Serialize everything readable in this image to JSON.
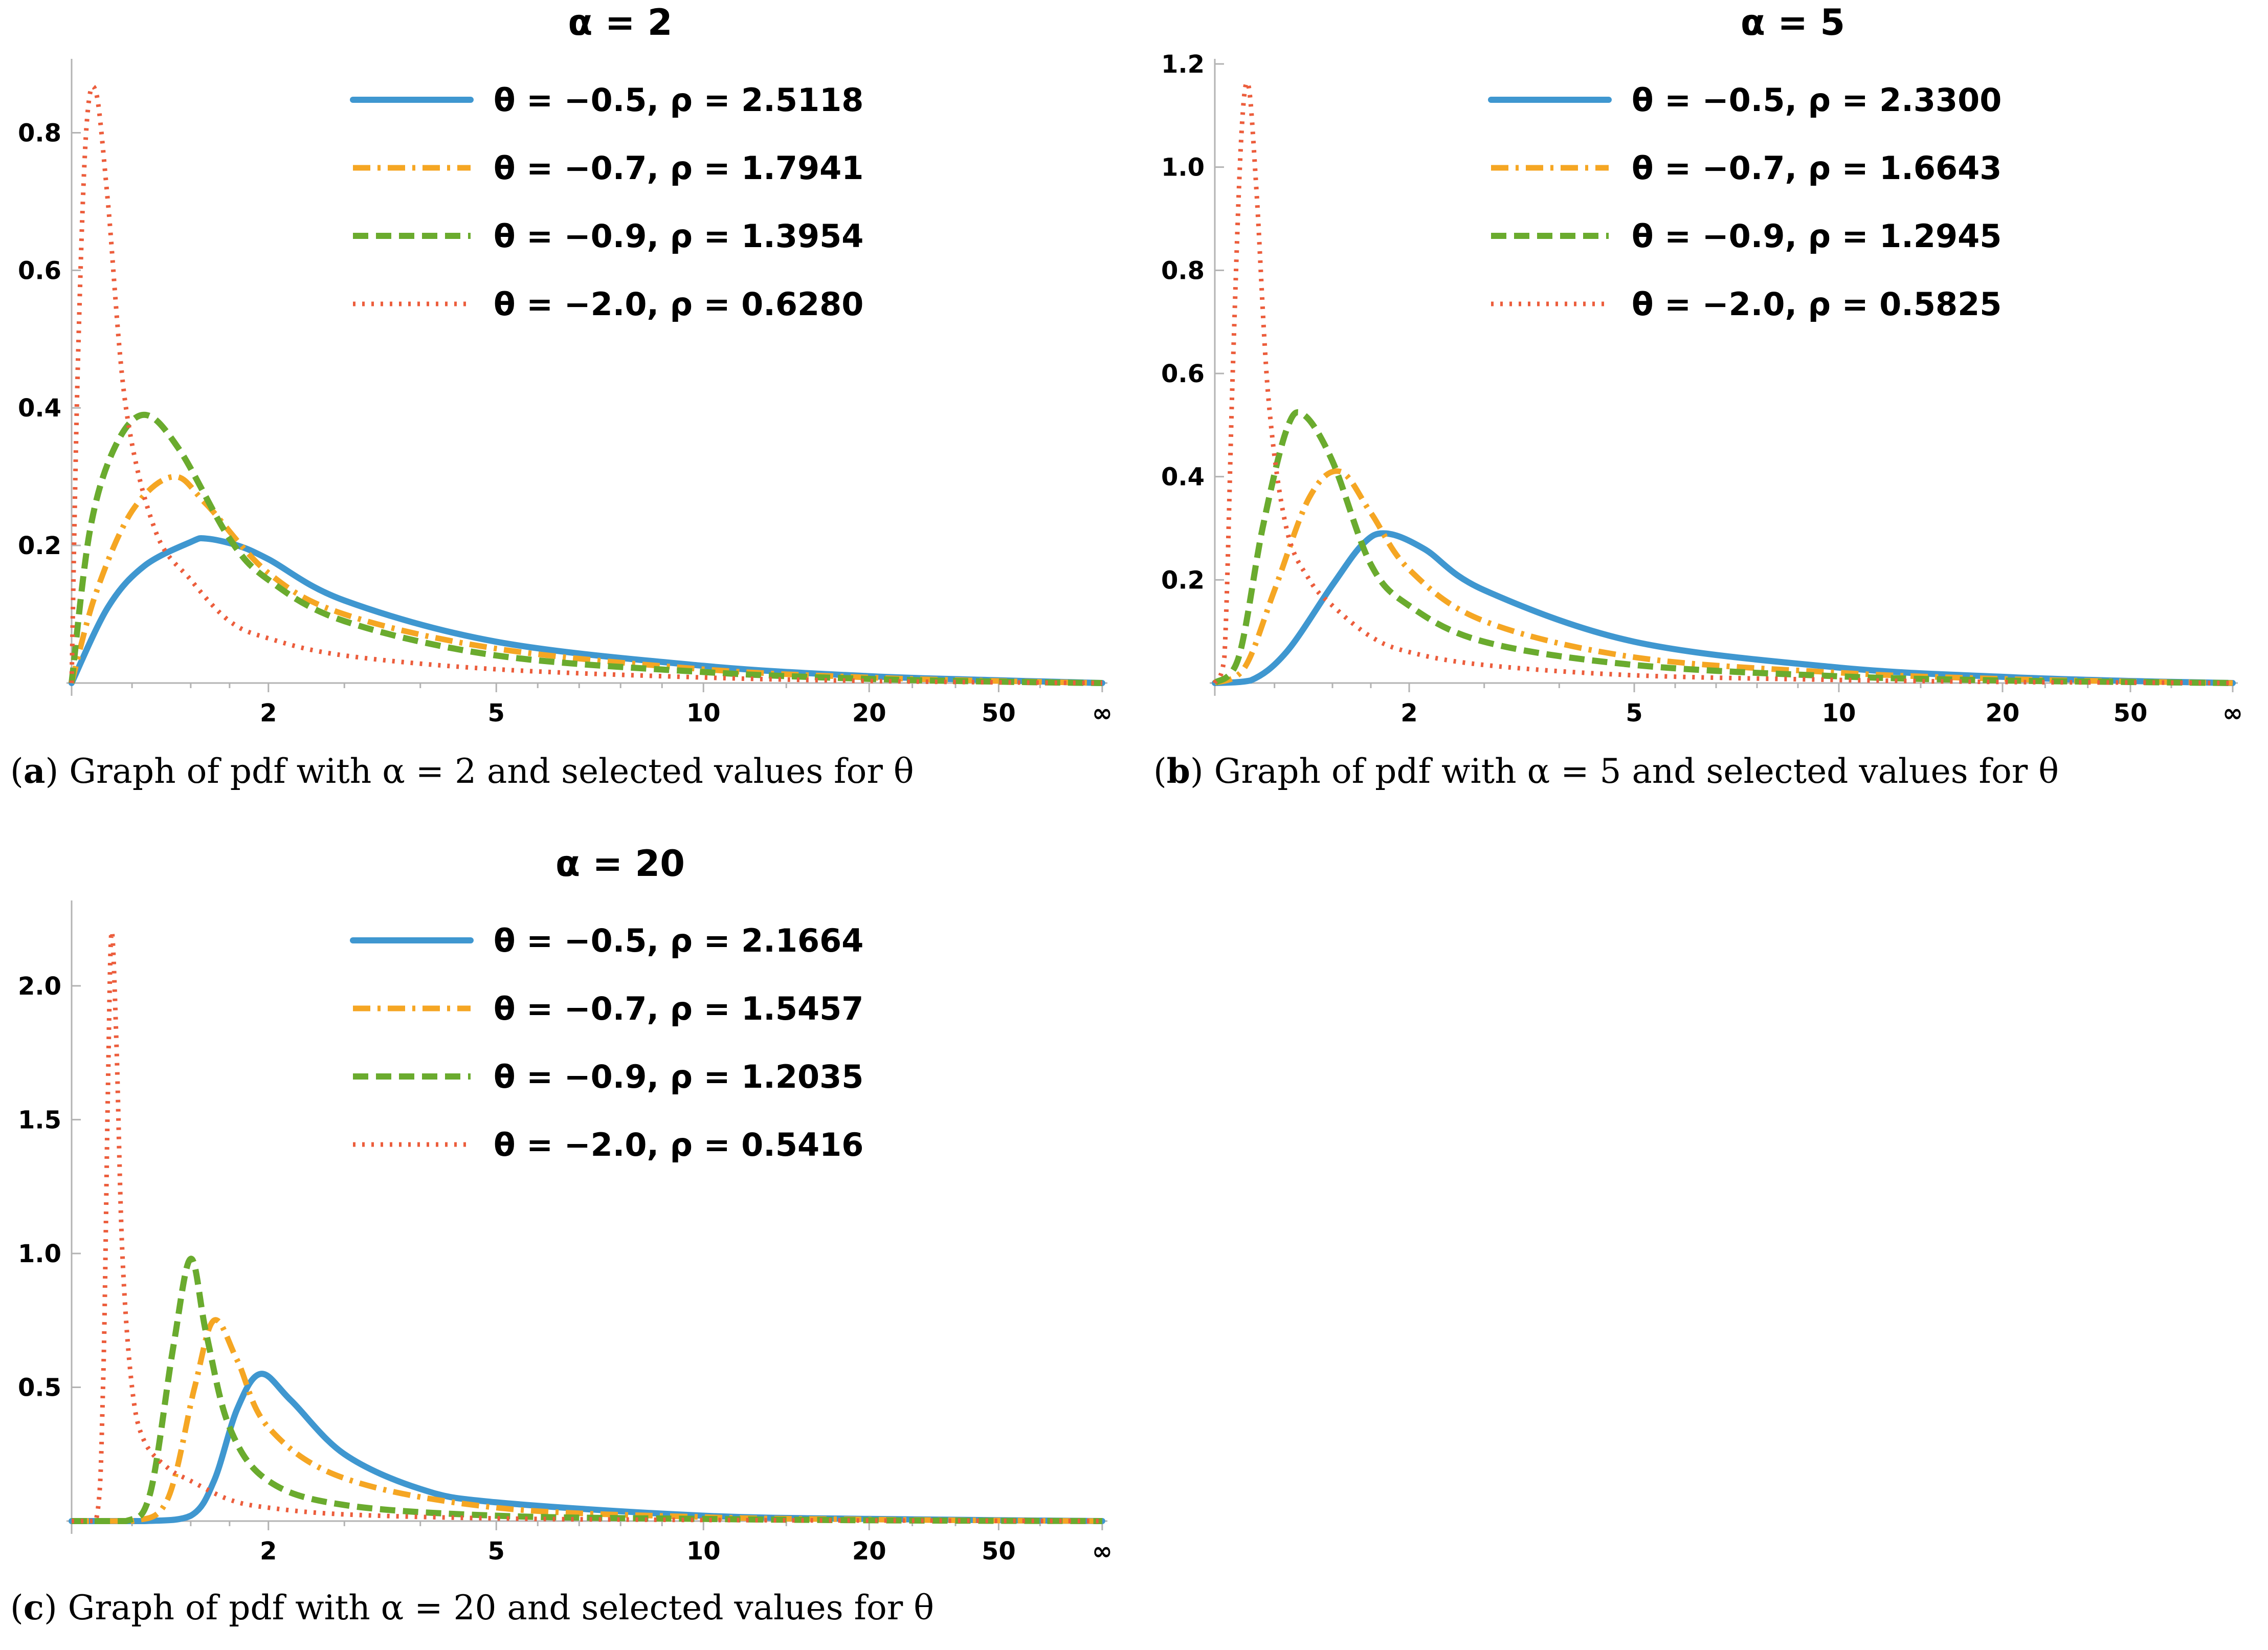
{
  "colors": {
    "blue": "#3f97d0",
    "orange": "#f5a623",
    "green": "#6aab2e",
    "red": "#ec5d3c"
  },
  "chart_data": [
    {
      "id": "a",
      "type": "line",
      "title": "α = 2",
      "caption_letter": "a",
      "caption_text": "Graph of pdf with α = 2 and selected values for θ",
      "xlabel": "",
      "ylabel": "",
      "x_scale": "compactified (0 to ∞)",
      "x_ticks": [
        "2",
        "5",
        "10",
        "20",
        "50",
        "∞"
      ],
      "x_tick_values": [
        2,
        5,
        10,
        20,
        50,
        "inf"
      ],
      "y_ticks": [
        "0.2",
        "0.4",
        "0.6",
        "0.8"
      ],
      "ylim": [
        0,
        0.9
      ],
      "legend_position": "top-center",
      "series": [
        {
          "name": "θ = −0.5, ρ = 2.5118",
          "style": "solid",
          "color": "blue",
          "peak_x": 1.2,
          "peak_y": 0.21,
          "x": [
            0,
            0.3,
            0.6,
            1.0,
            1.2,
            1.6,
            2,
            3,
            5,
            10,
            20,
            50,
            "inf"
          ],
          "y": [
            0,
            0.11,
            0.17,
            0.205,
            0.21,
            0.2,
            0.18,
            0.12,
            0.06,
            0.025,
            0.01,
            0.004,
            0
          ]
        },
        {
          "name": "θ = −0.7, ρ = 1.7941",
          "style": "dashdot",
          "color": "orange",
          "peak_x": 0.85,
          "peak_y": 0.3,
          "x": [
            0,
            0.2,
            0.5,
            0.85,
            1.2,
            2,
            3,
            5,
            10,
            20,
            50,
            "inf"
          ],
          "y": [
            0,
            0.13,
            0.25,
            0.3,
            0.26,
            0.16,
            0.1,
            0.05,
            0.02,
            0.008,
            0.003,
            0
          ]
        },
        {
          "name": "θ = −0.9, ρ = 1.3954",
          "style": "dashed",
          "color": "green",
          "peak_x": 0.6,
          "peak_y": 0.39,
          "x": [
            0,
            0.15,
            0.35,
            0.6,
            0.9,
            1.5,
            2,
            3,
            5,
            10,
            20,
            50,
            "inf"
          ],
          "y": [
            0,
            0.22,
            0.34,
            0.39,
            0.34,
            0.21,
            0.15,
            0.09,
            0.04,
            0.016,
            0.006,
            0.002,
            0
          ]
        },
        {
          "name": "θ = −2.0, ρ = 0.6280",
          "style": "dotted",
          "color": "red",
          "peak_x": 0.2,
          "peak_y": 0.86,
          "x": [
            0,
            0.05,
            0.12,
            0.2,
            0.3,
            0.45,
            0.7,
            1.0,
            1.5,
            2,
            3,
            5,
            10,
            20,
            50,
            "inf"
          ],
          "y": [
            0,
            0.45,
            0.8,
            0.86,
            0.7,
            0.4,
            0.22,
            0.15,
            0.09,
            0.065,
            0.04,
            0.02,
            0.008,
            0.003,
            0.001,
            0
          ]
        }
      ]
    },
    {
      "id": "b",
      "type": "line",
      "title": "α = 5",
      "caption_letter": "b",
      "caption_text": "Graph of pdf with α = 5 and selected values for θ",
      "xlabel": "",
      "ylabel": "",
      "x_scale": "compactified (0 to ∞)",
      "x_ticks": [
        "2",
        "5",
        "10",
        "20",
        "50",
        "∞"
      ],
      "x_tick_values": [
        2,
        5,
        10,
        20,
        50,
        "inf"
      ],
      "y_ticks": [
        "0.2",
        "0.4",
        "0.6",
        "0.8",
        "1.0",
        "1.2"
      ],
      "ylim": [
        0,
        1.2
      ],
      "legend_position": "top-center",
      "series": [
        {
          "name": "θ = −0.5, ρ = 2.3300",
          "style": "solid",
          "color": "blue",
          "peak_x": 1.7,
          "peak_y": 0.29,
          "x": [
            0,
            0.3,
            0.6,
            1.0,
            1.4,
            1.7,
            2.2,
            3,
            5,
            10,
            20,
            50,
            "inf"
          ],
          "y": [
            0,
            0.005,
            0.06,
            0.19,
            0.27,
            0.29,
            0.26,
            0.18,
            0.08,
            0.03,
            0.012,
            0.004,
            0
          ]
        },
        {
          "name": "θ = −0.7, ρ = 1.6643",
          "style": "dashdot",
          "color": "orange",
          "peak_x": 1.1,
          "peak_y": 0.41,
          "x": [
            0,
            0.25,
            0.5,
            0.8,
            1.1,
            1.5,
            2,
            3,
            5,
            10,
            20,
            50,
            "inf"
          ],
          "y": [
            0,
            0.03,
            0.18,
            0.36,
            0.41,
            0.33,
            0.22,
            0.12,
            0.05,
            0.02,
            0.008,
            0.003,
            0
          ]
        },
        {
          "name": "θ = −0.9, ρ = 1.2945",
          "style": "dashed",
          "color": "green",
          "peak_x": 0.75,
          "peak_y": 0.52,
          "x": [
            0,
            0.2,
            0.4,
            0.6,
            0.75,
            1.0,
            1.5,
            2,
            3,
            5,
            10,
            20,
            50,
            "inf"
          ],
          "y": [
            0,
            0.05,
            0.3,
            0.49,
            0.52,
            0.43,
            0.23,
            0.15,
            0.08,
            0.035,
            0.013,
            0.005,
            0.002,
            0
          ]
        },
        {
          "name": "θ = −2.0, ρ = 0.5825",
          "style": "dotted",
          "color": "red",
          "peak_x": 0.28,
          "peak_y": 1.16,
          "x": [
            0,
            0.08,
            0.15,
            0.22,
            0.28,
            0.35,
            0.45,
            0.6,
            0.8,
            1.0,
            1.5,
            2,
            3,
            5,
            10,
            20,
            50,
            "inf"
          ],
          "y": [
            0,
            0.05,
            0.6,
            1.05,
            1.16,
            0.95,
            0.55,
            0.3,
            0.2,
            0.15,
            0.09,
            0.06,
            0.035,
            0.015,
            0.006,
            0.002,
            0.001,
            0
          ]
        }
      ]
    },
    {
      "id": "c",
      "type": "line",
      "title": "α = 20",
      "caption_letter": "c",
      "caption_text": "Graph of pdf with α = 20 and selected values for θ",
      "xlabel": "",
      "ylabel": "",
      "x_scale": "compactified (0 to ∞)",
      "x_ticks": [
        "2",
        "5",
        "10",
        "20",
        "50",
        "∞"
      ],
      "x_tick_values": [
        2,
        5,
        10,
        20,
        50,
        "inf"
      ],
      "y_ticks": [
        "0.5",
        "1.0",
        "1.5",
        "2.0"
      ],
      "ylim": [
        0,
        2.3
      ],
      "legend_position": "top-center",
      "series": [
        {
          "name": "θ = −0.5, ρ = 2.1664",
          "style": "solid",
          "color": "blue",
          "peak_x": 1.9,
          "peak_y": 0.55,
          "x": [
            0,
            0.6,
            1.0,
            1.3,
            1.6,
            1.9,
            2.3,
            3,
            4,
            5,
            10,
            20,
            50,
            "inf"
          ],
          "y": [
            0,
            0,
            0.02,
            0.15,
            0.42,
            0.55,
            0.45,
            0.25,
            0.12,
            0.07,
            0.02,
            0.008,
            0.003,
            0
          ]
        },
        {
          "name": "θ = −0.7, ρ = 1.5457",
          "style": "dashdot",
          "color": "orange",
          "peak_x": 1.3,
          "peak_y": 0.75,
          "x": [
            0,
            0.5,
            0.8,
            1.05,
            1.3,
            1.6,
            2,
            3,
            5,
            10,
            20,
            50,
            "inf"
          ],
          "y": [
            0,
            0,
            0.08,
            0.5,
            0.75,
            0.6,
            0.35,
            0.16,
            0.05,
            0.015,
            0.006,
            0.002,
            0
          ]
        },
        {
          "name": "θ = −0.9, ρ = 1.2035",
          "style": "dashed",
          "color": "green",
          "peak_x": 1.0,
          "peak_y": 0.98,
          "x": [
            0,
            0.45,
            0.65,
            0.85,
            1.0,
            1.2,
            1.5,
            2,
            3,
            5,
            10,
            20,
            50,
            "inf"
          ],
          "y": [
            0,
            0,
            0.1,
            0.65,
            0.98,
            0.7,
            0.35,
            0.15,
            0.06,
            0.02,
            0.008,
            0.003,
            0.001,
            0
          ]
        },
        {
          "name": "θ = −2.0, ρ = 0.5416",
          "style": "dotted",
          "color": "red",
          "peak_x": 0.33,
          "peak_y": 2.2,
          "x": [
            0,
            0.2,
            0.26,
            0.3,
            0.33,
            0.37,
            0.42,
            0.5,
            0.6,
            0.8,
            1.0,
            1.5,
            2,
            3,
            5,
            10,
            50,
            "inf"
          ],
          "y": [
            0,
            0,
            0.5,
            1.6,
            2.2,
            1.8,
            1.0,
            0.5,
            0.3,
            0.2,
            0.15,
            0.08,
            0.05,
            0.025,
            0.01,
            0.004,
            0.001,
            0
          ]
        }
      ]
    }
  ]
}
